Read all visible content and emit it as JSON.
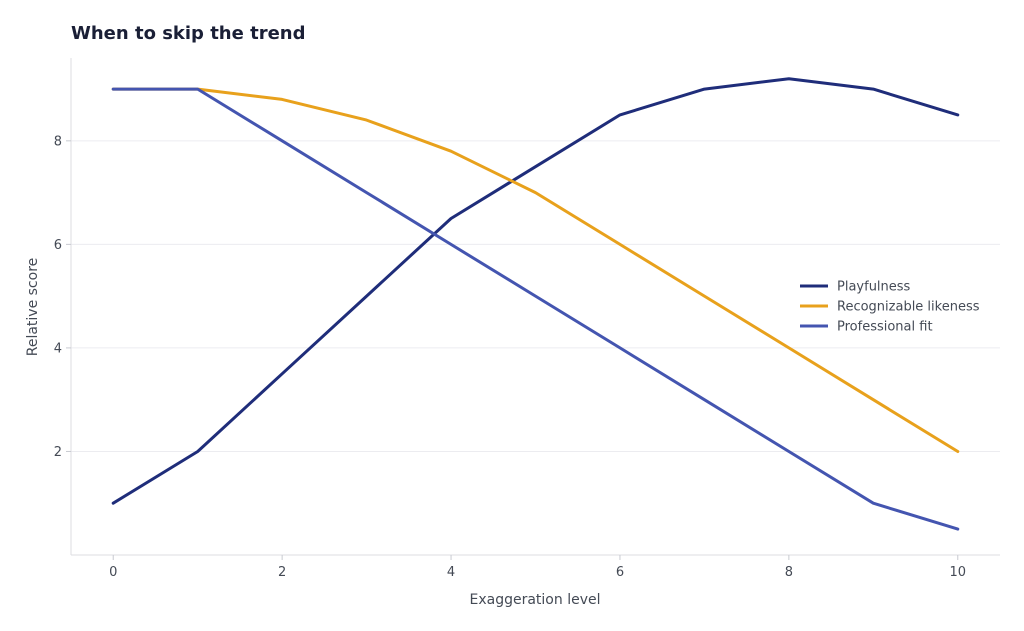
{
  "chart_data": {
    "type": "line",
    "title": "When to skip the trend",
    "xlabel": "Exaggeration level",
    "ylabel": "Relative score",
    "x": [
      0,
      1,
      2,
      3,
      4,
      5,
      6,
      7,
      8,
      9,
      10
    ],
    "xlim": [
      -0.5,
      10.5
    ],
    "ylim": [
      0,
      9.6
    ],
    "xticks": [
      0,
      2,
      4,
      6,
      8,
      10
    ],
    "yticks": [
      2,
      4,
      6,
      8
    ],
    "grid": "horizontal",
    "legend_position": "right",
    "series": [
      {
        "name": "Playfulness",
        "color": "#1f2d7a",
        "values": [
          1,
          2,
          3.5,
          5,
          6.5,
          7.5,
          8.5,
          9,
          9.2,
          9,
          8.5
        ]
      },
      {
        "name": "Recognizable likeness",
        "color": "#e8a11c",
        "values": [
          9,
          9,
          8.8,
          8.4,
          7.8,
          7,
          6,
          5,
          4,
          3,
          2
        ]
      },
      {
        "name": "Professional fit",
        "color": "#4455b0",
        "values": [
          9,
          9,
          8,
          7,
          6,
          5,
          4,
          3,
          2,
          1,
          0.5
        ]
      }
    ]
  }
}
